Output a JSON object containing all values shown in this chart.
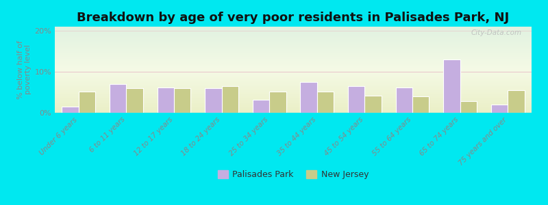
{
  "title": "Breakdown by age of very poor residents in Palisades Park, NJ",
  "ylabel": "% below half of\npoverty level",
  "categories": [
    "Under 6 years",
    "6 to 11 years",
    "12 to 17 years",
    "18 to 24 years",
    "25 to 34 years",
    "35 to 44 years",
    "45 to 54 years",
    "55 to 64 years",
    "65 to 74 years",
    "75 years and over"
  ],
  "palisades_values": [
    1.5,
    7.0,
    6.2,
    6.0,
    3.2,
    7.5,
    6.5,
    6.2,
    13.0,
    2.0
  ],
  "nj_values": [
    5.2,
    6.0,
    6.0,
    6.5,
    5.2,
    5.2,
    4.2,
    4.0,
    2.8,
    5.5
  ],
  "palisades_color": "#c5aee0",
  "nj_color": "#c8cc8a",
  "bar_edge_color": "#ffffff",
  "background_outer": "#00e8f0",
  "ylim": [
    0,
    21
  ],
  "yticks": [
    0,
    10,
    20
  ],
  "ytick_labels": [
    "0%",
    "10%",
    "20%"
  ],
  "title_fontsize": 13,
  "legend_labels": [
    "Palisades Park",
    "New Jersey"
  ],
  "watermark": "City-Data.com",
  "grid_color": "#e8c8cc",
  "tick_color": "#888888"
}
